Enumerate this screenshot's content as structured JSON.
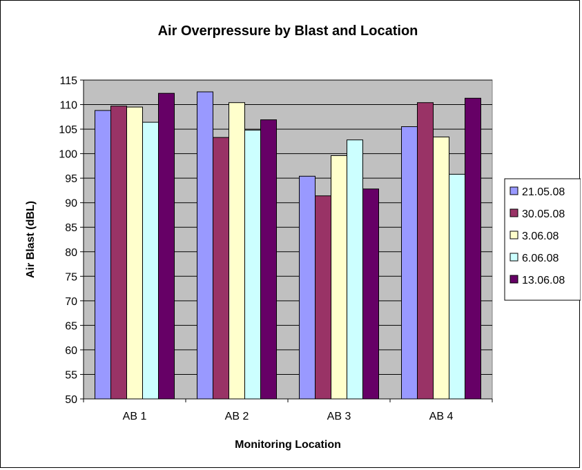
{
  "chart_data": {
    "type": "bar",
    "title": "Air Overpressure by Blast and Location",
    "xlabel": "Monitoring Location",
    "ylabel": "Air Blast (dBL)",
    "categories": [
      "AB 1",
      "AB 2",
      "AB 3",
      "AB 4"
    ],
    "series": [
      {
        "name": "21.05.08",
        "color": "#9999ff",
        "values": [
          108.8,
          112.6,
          95.4,
          105.5
        ]
      },
      {
        "name": "30.05.08",
        "color": "#993366",
        "values": [
          109.7,
          103.3,
          91.4,
          110.4
        ]
      },
      {
        "name": "3.06.08",
        "color": "#ffffcc",
        "values": [
          109.5,
          110.4,
          99.6,
          103.4
        ]
      },
      {
        "name": "6.06.08",
        "color": "#ccffff",
        "values": [
          106.4,
          104.8,
          102.8,
          95.8
        ]
      },
      {
        "name": "13.06.08",
        "color": "#660066",
        "values": [
          112.3,
          106.9,
          92.8,
          111.3
        ]
      }
    ],
    "ylim": [
      50,
      115
    ],
    "yticks": [
      "50",
      "55",
      "60",
      "65",
      "70",
      "75",
      "80",
      "85",
      "90",
      "95",
      "100",
      "105",
      "110",
      "115"
    ],
    "grid": true,
    "plot_background": "#c0c0c0",
    "legend_position": "right"
  }
}
